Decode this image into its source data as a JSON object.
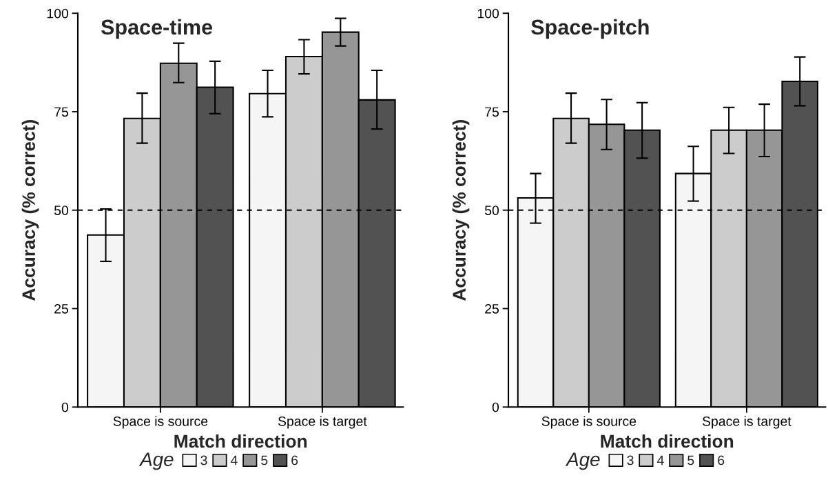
{
  "chart_data": [
    {
      "type": "bar",
      "title": "Space-time",
      "xlabel": "Match direction",
      "ylabel": "Accuracy (% correct)",
      "legend_title": "Age",
      "legend": "bottom",
      "categories": [
        "Space is source",
        "Space is target"
      ],
      "series": [
        {
          "name": "3",
          "color": "#f5f5f5",
          "values": [
            43.7,
            79.6
          ],
          "errors": [
            [
              37.0,
              50.3
            ],
            [
              73.7,
              85.5
            ]
          ]
        },
        {
          "name": "4",
          "color": "#cccccc",
          "values": [
            73.3,
            89.0
          ],
          "errors": [
            [
              67.0,
              79.7
            ],
            [
              84.6,
              93.3
            ]
          ]
        },
        {
          "name": "5",
          "color": "#969696",
          "values": [
            87.3,
            95.2
          ],
          "errors": [
            [
              82.4,
              92.4
            ],
            [
              91.7,
              98.7
            ]
          ]
        },
        {
          "name": "6",
          "color": "#525252",
          "values": [
            81.2,
            78.0
          ],
          "errors": [
            [
              74.5,
              87.8
            ],
            [
              70.6,
              85.5
            ]
          ]
        }
      ],
      "ylim": [
        0,
        100
      ],
      "yticks": [
        0,
        25,
        50,
        75,
        100
      ],
      "grid": false,
      "ref_lines": [
        {
          "axis": "y",
          "value": 50,
          "line_style": "dashed",
          "color": "#000000"
        }
      ]
    },
    {
      "type": "bar",
      "title": "Space-pitch",
      "xlabel": "Match direction",
      "ylabel": "Accuracy (% correct)",
      "legend_title": "Age",
      "legend": "bottom",
      "categories": [
        "Space is source",
        "Space is target"
      ],
      "series": [
        {
          "name": "3",
          "color": "#f5f5f5",
          "values": [
            53.1,
            59.3
          ],
          "errors": [
            [
              46.7,
              59.3
            ],
            [
              52.3,
              66.2
            ]
          ]
        },
        {
          "name": "4",
          "color": "#cccccc",
          "values": [
            73.3,
            70.3
          ],
          "errors": [
            [
              67.0,
              79.7
            ],
            [
              64.4,
              76.1
            ]
          ]
        },
        {
          "name": "5",
          "color": "#969696",
          "values": [
            71.8,
            70.3
          ],
          "errors": [
            [
              65.4,
              78.1
            ],
            [
              63.6,
              76.9
            ]
          ]
        },
        {
          "name": "6",
          "color": "#525252",
          "values": [
            70.3,
            82.7
          ],
          "errors": [
            [
              63.2,
              77.3
            ],
            [
              76.5,
              88.9
            ]
          ]
        }
      ],
      "ylim": [
        0,
        100
      ],
      "yticks": [
        0,
        25,
        50,
        75,
        100
      ],
      "grid": false,
      "ref_lines": [
        {
          "axis": "y",
          "value": 50,
          "line_style": "dashed",
          "color": "#000000"
        }
      ]
    }
  ]
}
